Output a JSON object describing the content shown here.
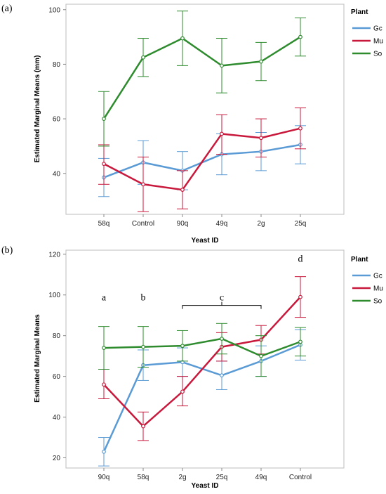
{
  "chart_data": [
    {
      "panel_label": "(a)",
      "type": "line",
      "xlabel": "Yeast ID",
      "ylabel": "Estimated Marginal Means (mm)",
      "categories": [
        "58q",
        "Control",
        "90q",
        "49q",
        "2g",
        "25q"
      ],
      "ylim": [
        25,
        102
      ],
      "yticks": [
        40,
        60,
        80,
        100
      ],
      "grid": false,
      "error_bars": true,
      "legend_title": "Plant",
      "legend_position": "right",
      "series": [
        {
          "name": "Gc",
          "color": "#5b9bd5",
          "values": [
            38.5,
            44.0,
            41.0,
            47.0,
            48.0,
            50.5
          ],
          "lower": [
            31.5,
            36.0,
            34.0,
            39.5,
            41.0,
            43.5
          ],
          "upper": [
            45.5,
            52.0,
            48.0,
            54.5,
            55.0,
            57.5
          ]
        },
        {
          "name": "Mu",
          "color": "#c8193c",
          "values": [
            43.5,
            36.0,
            34.0,
            54.5,
            53.0,
            56.5
          ],
          "lower": [
            36.0,
            26.0,
            27.0,
            47.0,
            46.0,
            49.0
          ],
          "upper": [
            50.5,
            46.0,
            41.0,
            61.5,
            60.0,
            64.0
          ]
        },
        {
          "name": "So",
          "color": "#2e8b2e",
          "values": [
            60.0,
            82.5,
            89.5,
            79.5,
            81.0,
            90.0
          ],
          "lower": [
            50.0,
            75.5,
            79.5,
            69.5,
            74.0,
            83.0
          ],
          "upper": [
            70.0,
            89.5,
            99.5,
            89.5,
            88.0,
            97.0
          ]
        }
      ],
      "annotations": []
    },
    {
      "panel_label": "(b)",
      "type": "line",
      "xlabel": "Yeast ID",
      "ylabel": "Estimated Marginal Means",
      "categories": [
        "90q",
        "58q",
        "2g",
        "25q",
        "49q",
        "Control"
      ],
      "ylim": [
        15,
        122
      ],
      "yticks": [
        20,
        40,
        60,
        80,
        100,
        120
      ],
      "grid": false,
      "error_bars": true,
      "legend_title": "Plant",
      "legend_position": "right",
      "series": [
        {
          "name": "Gc",
          "color": "#5b9bd5",
          "values": [
            23.0,
            65.5,
            67.0,
            60.5,
            67.5,
            75.5
          ],
          "lower": [
            16.0,
            58.0,
            60.0,
            53.5,
            60.0,
            68.0
          ],
          "upper": [
            30.0,
            73.0,
            74.0,
            67.5,
            75.0,
            83.0
          ]
        },
        {
          "name": "Mu",
          "color": "#c8193c",
          "values": [
            56.0,
            35.5,
            52.5,
            74.5,
            78.0,
            99.0
          ],
          "lower": [
            49.0,
            28.5,
            45.5,
            67.5,
            71.0,
            89.0
          ],
          "upper": [
            63.5,
            42.5,
            60.0,
            81.5,
            85.0,
            109.0
          ]
        },
        {
          "name": "So",
          "color": "#2e8b2e",
          "values": [
            74.0,
            74.5,
            75.0,
            78.5,
            70.0,
            77.0
          ],
          "lower": [
            63.5,
            64.5,
            67.5,
            71.0,
            60.0,
            70.0
          ],
          "upper": [
            84.5,
            84.5,
            82.5,
            86.0,
            80.0,
            84.0
          ]
        }
      ],
      "annotations": [
        {
          "text": "a",
          "category": "90q",
          "y": 99
        },
        {
          "text": "b",
          "category": "58q",
          "y": 99
        },
        {
          "text": "c",
          "category_range": [
            "2g",
            "49q"
          ],
          "y": 99
        },
        {
          "text": "d",
          "category": "Control",
          "y": 118
        }
      ]
    }
  ]
}
